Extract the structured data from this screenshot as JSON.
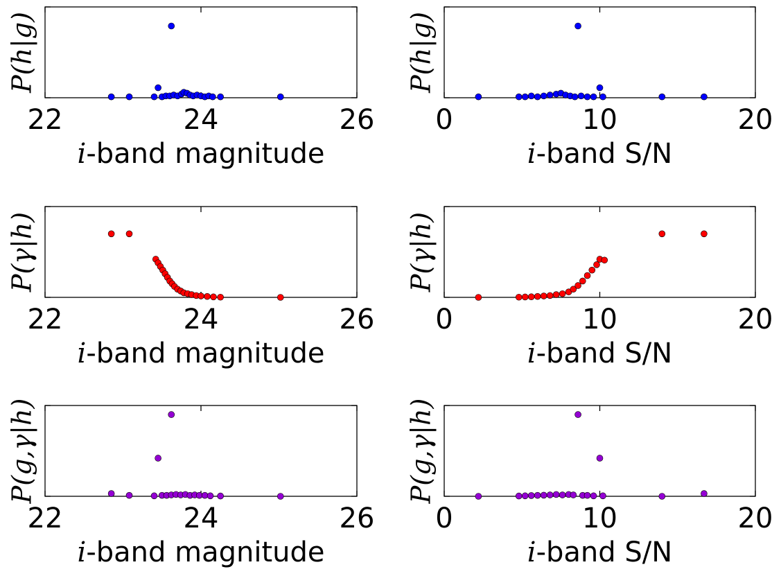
{
  "colors": {
    "hg": "#0000ff",
    "gamma": "#ff0000",
    "ggamma": "#9400d3",
    "edge": "#000000"
  },
  "chart_data": [
    {
      "id": "hg-mag",
      "type": "scatter",
      "color": "hg",
      "ylabel": "P(h|g)",
      "xlabel_prefix": "i",
      "xlabel_rest": "-band magnitude",
      "xlim": [
        22,
        26
      ],
      "ylim": [
        0,
        1
      ],
      "xticks": [
        22,
        24,
        26
      ],
      "xtick_labels": [
        "22",
        "24",
        "26"
      ],
      "points": [
        [
          22.85,
          0.01
        ],
        [
          23.08,
          0.01
        ],
        [
          23.45,
          0.11
        ],
        [
          23.62,
          0.79
        ],
        [
          23.4,
          0.01
        ],
        [
          23.5,
          0.01
        ],
        [
          23.55,
          0.02
        ],
        [
          23.6,
          0.02
        ],
        [
          23.65,
          0.03
        ],
        [
          23.7,
          0.02
        ],
        [
          23.75,
          0.04
        ],
        [
          23.78,
          0.06
        ],
        [
          23.82,
          0.05
        ],
        [
          23.86,
          0.03
        ],
        [
          23.9,
          0.02
        ],
        [
          23.95,
          0.03
        ],
        [
          24.0,
          0.02
        ],
        [
          24.05,
          0.01
        ],
        [
          24.1,
          0.02
        ],
        [
          24.15,
          0.01
        ],
        [
          24.25,
          0.01
        ],
        [
          25.02,
          0.01
        ]
      ]
    },
    {
      "id": "hg-sn",
      "type": "scatter",
      "color": "hg",
      "ylabel": "P(h|g)",
      "xlabel_prefix": "i",
      "xlabel_rest": "-band S/N",
      "xlim": [
        0,
        20
      ],
      "ylim": [
        0,
        1
      ],
      "xticks": [
        0,
        10,
        20
      ],
      "xtick_labels": [
        "0",
        "10",
        "20"
      ],
      "points": [
        [
          2.2,
          0.01
        ],
        [
          4.8,
          0.01
        ],
        [
          5.2,
          0.01
        ],
        [
          5.6,
          0.02
        ],
        [
          6.0,
          0.01
        ],
        [
          6.4,
          0.02
        ],
        [
          6.8,
          0.03
        ],
        [
          7.2,
          0.04
        ],
        [
          7.5,
          0.05
        ],
        [
          7.8,
          0.03
        ],
        [
          8.1,
          0.02
        ],
        [
          8.4,
          0.01
        ],
        [
          8.6,
          0.79
        ],
        [
          8.8,
          0.02
        ],
        [
          9.2,
          0.01
        ],
        [
          9.6,
          0.01
        ],
        [
          10.0,
          0.11
        ],
        [
          10.2,
          0.01
        ],
        [
          14.0,
          0.01
        ],
        [
          16.7,
          0.01
        ]
      ]
    },
    {
      "id": "gamma-mag",
      "type": "scatter",
      "color": "gamma",
      "ylabel": "P(γ|h)",
      "xlabel_prefix": "i",
      "xlabel_rest": "-band magnitude",
      "xlim": [
        22,
        26
      ],
      "ylim": [
        0,
        1
      ],
      "xticks": [
        22,
        24,
        26
      ],
      "xtick_labels": [
        "22",
        "24",
        "26"
      ],
      "points": [
        [
          22.85,
          0.7
        ],
        [
          23.08,
          0.7
        ],
        [
          23.42,
          0.42
        ],
        [
          23.45,
          0.38
        ],
        [
          23.48,
          0.34
        ],
        [
          23.51,
          0.3
        ],
        [
          23.54,
          0.26
        ],
        [
          23.57,
          0.22
        ],
        [
          23.6,
          0.18
        ],
        [
          23.63,
          0.15
        ],
        [
          23.66,
          0.12
        ],
        [
          23.7,
          0.09
        ],
        [
          23.74,
          0.07
        ],
        [
          23.78,
          0.05
        ],
        [
          23.83,
          0.04
        ],
        [
          23.88,
          0.03
        ],
        [
          23.94,
          0.02
        ],
        [
          24.0,
          0.015
        ],
        [
          24.08,
          0.01
        ],
        [
          24.16,
          0.005
        ],
        [
          24.25,
          0.002
        ],
        [
          25.02,
          0.0
        ]
      ]
    },
    {
      "id": "gamma-sn",
      "type": "scatter",
      "color": "gamma",
      "ylabel": "P(γ|h)",
      "xlabel_prefix": "i",
      "xlabel_rest": "-band S/N",
      "xlim": [
        0,
        20
      ],
      "ylim": [
        0,
        1
      ],
      "xticks": [
        0,
        10,
        20
      ],
      "xtick_labels": [
        "0",
        "10",
        "20"
      ],
      "points": [
        [
          2.2,
          0.0
        ],
        [
          4.8,
          0.002
        ],
        [
          5.2,
          0.004
        ],
        [
          5.6,
          0.006
        ],
        [
          6.0,
          0.01
        ],
        [
          6.4,
          0.015
        ],
        [
          6.8,
          0.02
        ],
        [
          7.2,
          0.03
        ],
        [
          7.6,
          0.04
        ],
        [
          8.0,
          0.06
        ],
        [
          8.3,
          0.09
        ],
        [
          8.6,
          0.13
        ],
        [
          8.9,
          0.18
        ],
        [
          9.2,
          0.24
        ],
        [
          9.5,
          0.3
        ],
        [
          9.8,
          0.36
        ],
        [
          10.0,
          0.42
        ],
        [
          10.3,
          0.41
        ],
        [
          14.0,
          0.7
        ],
        [
          16.7,
          0.7
        ]
      ]
    },
    {
      "id": "ggamma-mag",
      "type": "scatter",
      "color": "ggamma",
      "ylabel": "P(g,γ|h)",
      "xlabel_prefix": "i",
      "xlabel_rest": "-band magnitude",
      "xlim": [
        22,
        26
      ],
      "ylim": [
        0,
        1
      ],
      "xticks": [
        22,
        24,
        26
      ],
      "xtick_labels": [
        "22",
        "24",
        "26"
      ],
      "points": [
        [
          22.85,
          0.03
        ],
        [
          23.08,
          0.01
        ],
        [
          23.45,
          0.42
        ],
        [
          23.62,
          0.9
        ],
        [
          23.4,
          0.005
        ],
        [
          23.5,
          0.01
        ],
        [
          23.56,
          0.01
        ],
        [
          23.62,
          0.015
        ],
        [
          23.68,
          0.02
        ],
        [
          23.74,
          0.015
        ],
        [
          23.8,
          0.02
        ],
        [
          23.86,
          0.01
        ],
        [
          23.92,
          0.015
        ],
        [
          23.98,
          0.01
        ],
        [
          24.05,
          0.01
        ],
        [
          24.12,
          0.005
        ],
        [
          24.25,
          0.003
        ],
        [
          25.02,
          0.0
        ]
      ]
    },
    {
      "id": "ggamma-sn",
      "type": "scatter",
      "color": "ggamma",
      "ylabel": "P(g,γ|h)",
      "xlabel_prefix": "i",
      "xlabel_rest": "-band S/N",
      "xlim": [
        0,
        20
      ],
      "ylim": [
        0,
        1
      ],
      "xticks": [
        0,
        10,
        20
      ],
      "xtick_labels": [
        "0",
        "10",
        "20"
      ],
      "points": [
        [
          2.2,
          0.0
        ],
        [
          4.8,
          0.003
        ],
        [
          5.2,
          0.005
        ],
        [
          5.6,
          0.008
        ],
        [
          6.0,
          0.01
        ],
        [
          6.4,
          0.012
        ],
        [
          6.8,
          0.015
        ],
        [
          7.2,
          0.02
        ],
        [
          7.6,
          0.015
        ],
        [
          8.0,
          0.02
        ],
        [
          8.3,
          0.015
        ],
        [
          8.6,
          0.9
        ],
        [
          8.9,
          0.01
        ],
        [
          9.2,
          0.01
        ],
        [
          9.6,
          0.005
        ],
        [
          10.0,
          0.42
        ],
        [
          10.2,
          0.005
        ],
        [
          14.0,
          0.0
        ],
        [
          16.7,
          0.03
        ]
      ]
    }
  ]
}
